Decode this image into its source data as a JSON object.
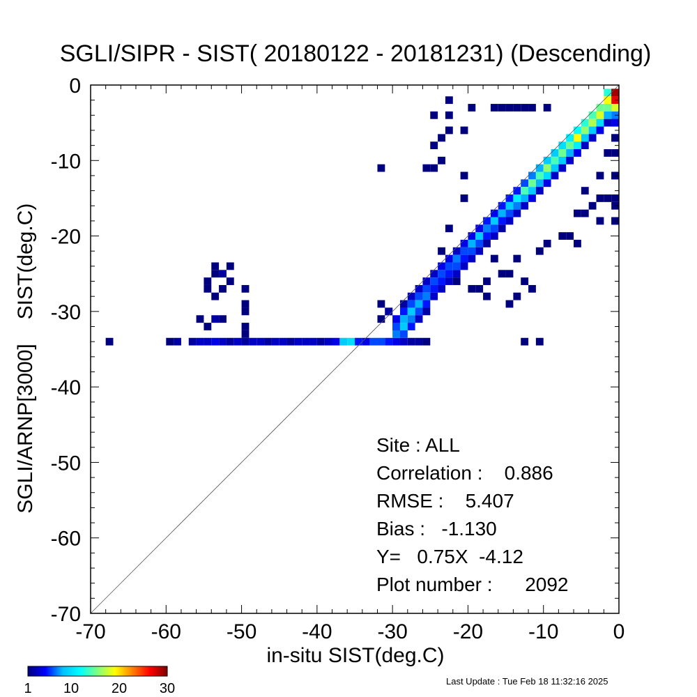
{
  "chart_data": {
    "type": "heatmap",
    "title": "SGLI/SIPR - SIST( 20180122 - 20181231) (Descending)",
    "xlabel": "in-situ SIST(deg.C)",
    "ylabel_lines": [
      "SGLI/ARNP[3000]",
      "SIST(deg.C)"
    ],
    "xlim": [
      -70,
      0
    ],
    "ylim": [
      -70,
      0
    ],
    "x_ticks": [
      "-70",
      "-60",
      "-50",
      "-40",
      "-30",
      "-20",
      "-10",
      "0"
    ],
    "y_ticks": [
      "-70",
      "-60",
      "-50",
      "-40",
      "-30",
      "-20",
      "-10",
      "0"
    ],
    "one_to_one_line": true,
    "bin_width": 1,
    "cells": [
      [
        -68,
        -34,
        1
      ],
      [
        -60,
        -34,
        1
      ],
      [
        -59,
        -34,
        2
      ],
      [
        -57,
        -34,
        2
      ],
      [
        -56,
        -34,
        3
      ],
      [
        -55,
        -34,
        3
      ],
      [
        -54,
        -34,
        4
      ],
      [
        -53,
        -34,
        3
      ],
      [
        -52,
        -34,
        2
      ],
      [
        -51,
        -34,
        3
      ],
      [
        -50,
        -34,
        2
      ],
      [
        -49,
        -34,
        3
      ],
      [
        -48,
        -34,
        3
      ],
      [
        -47,
        -34,
        2
      ],
      [
        -46,
        -34,
        3
      ],
      [
        -45,
        -34,
        3
      ],
      [
        -44,
        -34,
        2
      ],
      [
        -43,
        -34,
        3
      ],
      [
        -42,
        -34,
        3
      ],
      [
        -41,
        -34,
        3
      ],
      [
        -40,
        -34,
        2
      ],
      [
        -39,
        -34,
        3
      ],
      [
        -38,
        -34,
        4
      ],
      [
        -37,
        -34,
        9
      ],
      [
        -36,
        -34,
        10
      ],
      [
        -35,
        -34,
        5
      ],
      [
        -34,
        -34,
        4
      ],
      [
        -33,
        -34,
        6
      ],
      [
        -32,
        -34,
        6
      ],
      [
        -31,
        -34,
        5
      ],
      [
        -30,
        -34,
        4
      ],
      [
        -29,
        -34,
        3
      ],
      [
        -28,
        -34,
        2
      ],
      [
        -27,
        -34,
        2
      ],
      [
        -26,
        -34,
        1
      ],
      [
        -54,
        -24,
        1
      ],
      [
        -52,
        -24,
        1
      ],
      [
        -54,
        -25,
        1
      ],
      [
        -53,
        -25,
        2
      ],
      [
        -55,
        -26,
        1
      ],
      [
        -52,
        -26,
        1
      ],
      [
        -55,
        -27,
        1
      ],
      [
        -53,
        -27,
        1
      ],
      [
        -50,
        -27,
        1
      ],
      [
        -54,
        -28,
        1
      ],
      [
        -50,
        -29,
        1
      ],
      [
        -50,
        -30,
        1
      ],
      [
        -56,
        -31,
        1
      ],
      [
        -54,
        -31,
        2
      ],
      [
        -53,
        -31,
        1
      ],
      [
        -55,
        -32,
        1
      ],
      [
        -50,
        -32,
        1
      ],
      [
        -50,
        -33,
        1
      ],
      [
        -32,
        -11,
        1
      ],
      [
        -32,
        -29,
        1
      ],
      [
        -32,
        -31,
        1
      ],
      [
        -31,
        -30,
        1
      ],
      [
        -30,
        -32,
        1
      ],
      [
        -31,
        -30,
        2
      ],
      [
        -30,
        -31,
        4
      ],
      [
        -30,
        -32,
        6
      ],
      [
        -30,
        -33,
        7
      ],
      [
        -29,
        -29,
        2
      ],
      [
        -29,
        -30,
        5
      ],
      [
        -29,
        -31,
        8
      ],
      [
        -29,
        -32,
        9
      ],
      [
        -29,
        -33,
        6
      ],
      [
        -28,
        -28,
        3
      ],
      [
        -28,
        -29,
        6
      ],
      [
        -28,
        -30,
        9
      ],
      [
        -28,
        -31,
        7
      ],
      [
        -28,
        -32,
        5
      ],
      [
        -27,
        -27,
        3
      ],
      [
        -27,
        -28,
        6
      ],
      [
        -27,
        -29,
        8
      ],
      [
        -27,
        -30,
        6
      ],
      [
        -27,
        -31,
        3
      ],
      [
        -26,
        -26,
        3
      ],
      [
        -26,
        -27,
        6
      ],
      [
        -26,
        -28,
        7
      ],
      [
        -26,
        -29,
        5
      ],
      [
        -26,
        -30,
        2
      ],
      [
        -25,
        -25,
        3
      ],
      [
        -25,
        -26,
        6
      ],
      [
        -25,
        -27,
        5
      ],
      [
        -25,
        -28,
        3
      ],
      [
        -24,
        -24,
        4
      ],
      [
        -24,
        -25,
        6
      ],
      [
        -24,
        -26,
        5
      ],
      [
        -24,
        -27,
        3
      ],
      [
        -23,
        -23,
        4
      ],
      [
        -23,
        -24,
        6
      ],
      [
        -23,
        -25,
        5
      ],
      [
        -23,
        -26,
        3
      ],
      [
        -22,
        -22,
        3
      ],
      [
        -22,
        -23,
        7
      ],
      [
        -22,
        -24,
        6
      ],
      [
        -22,
        -25,
        3
      ],
      [
        -21,
        -21,
        4
      ],
      [
        -21,
        -22,
        6
      ],
      [
        -21,
        -23,
        5
      ],
      [
        -21,
        -24,
        3
      ],
      [
        -20,
        -20,
        4
      ],
      [
        -20,
        -21,
        8
      ],
      [
        -20,
        -22,
        6
      ],
      [
        -20,
        -23,
        3
      ],
      [
        -19,
        -19,
        4
      ],
      [
        -19,
        -20,
        9
      ],
      [
        -19,
        -21,
        6
      ],
      [
        -19,
        -22,
        3
      ],
      [
        -18,
        -18,
        5
      ],
      [
        -18,
        -19,
        7
      ],
      [
        -18,
        -20,
        5
      ],
      [
        -18,
        -21,
        2
      ],
      [
        -17,
        -17,
        4
      ],
      [
        -17,
        -18,
        9
      ],
      [
        -17,
        -19,
        6
      ],
      [
        -17,
        -20,
        3
      ],
      [
        -16,
        -16,
        5
      ],
      [
        -16,
        -17,
        8
      ],
      [
        -16,
        -18,
        5
      ],
      [
        -16,
        -19,
        2
      ],
      [
        -15,
        -15,
        5
      ],
      [
        -15,
        -16,
        9
      ],
      [
        -15,
        -17,
        6
      ],
      [
        -15,
        -18,
        3
      ],
      [
        -14,
        -14,
        5
      ],
      [
        -14,
        -15,
        11
      ],
      [
        -14,
        -16,
        7
      ],
      [
        -14,
        -17,
        3
      ],
      [
        -13,
        -13,
        6
      ],
      [
        -13,
        -14,
        14
      ],
      [
        -13,
        -15,
        8
      ],
      [
        -13,
        -16,
        3
      ],
      [
        -12,
        -12,
        7
      ],
      [
        -12,
        -13,
        15
      ],
      [
        -12,
        -14,
        9
      ],
      [
        -12,
        -15,
        4
      ],
      [
        -11,
        -11,
        8
      ],
      [
        -11,
        -12,
        14
      ],
      [
        -11,
        -13,
        8
      ],
      [
        -11,
        -14,
        3
      ],
      [
        -10,
        -10,
        9
      ],
      [
        -10,
        -11,
        16
      ],
      [
        -10,
        -12,
        10
      ],
      [
        -10,
        -13,
        4
      ],
      [
        -9,
        -9,
        9
      ],
      [
        -9,
        -10,
        14
      ],
      [
        -9,
        -11,
        9
      ],
      [
        -9,
        -12,
        3
      ],
      [
        -8,
        -8,
        10
      ],
      [
        -8,
        -9,
        15
      ],
      [
        -8,
        -10,
        9
      ],
      [
        -8,
        -11,
        3
      ],
      [
        -7,
        -7,
        11
      ],
      [
        -7,
        -8,
        15
      ],
      [
        -7,
        -9,
        8
      ],
      [
        -7,
        -10,
        3
      ],
      [
        -6,
        -6,
        12
      ],
      [
        -6,
        -7,
        19
      ],
      [
        -6,
        -8,
        11
      ],
      [
        -6,
        -9,
        4
      ],
      [
        -5,
        -5,
        13
      ],
      [
        -5,
        -6,
        16
      ],
      [
        -5,
        -7,
        9
      ],
      [
        -5,
        -8,
        3
      ],
      [
        -4,
        -4,
        14
      ],
      [
        -4,
        -5,
        17
      ],
      [
        -4,
        -6,
        9
      ],
      [
        -4,
        -7,
        3
      ],
      [
        -3,
        -3,
        15
      ],
      [
        -3,
        -4,
        18
      ],
      [
        -3,
        -5,
        10
      ],
      [
        -3,
        -6,
        4
      ],
      [
        -2,
        -1,
        13
      ],
      [
        -2,
        -2,
        19
      ],
      [
        -2,
        -3,
        15
      ],
      [
        -2,
        -4,
        8
      ],
      [
        -2,
        -5,
        3
      ],
      [
        -1,
        -1,
        25
      ],
      [
        -1,
        -2,
        22
      ],
      [
        -1,
        -3,
        14
      ],
      [
        -1,
        -4,
        7
      ],
      [
        -1,
        -5,
        3
      ],
      [
        0,
        -1,
        29
      ],
      [
        0,
        -2,
        27
      ],
      [
        0,
        -3,
        18
      ],
      [
        0,
        -5,
        4
      ],
      [
        -23,
        -2,
        1
      ],
      [
        -23,
        -4,
        1
      ],
      [
        -20,
        -3,
        1
      ],
      [
        -17,
        -3,
        1
      ],
      [
        -16,
        -3,
        1
      ],
      [
        -15,
        -3,
        1
      ],
      [
        -14,
        -3,
        1
      ],
      [
        -13,
        -3,
        1
      ],
      [
        -12,
        -3,
        1
      ],
      [
        -10,
        -3,
        1
      ],
      [
        -25,
        -4,
        1
      ],
      [
        -23,
        -6,
        1
      ],
      [
        -21,
        -6,
        1
      ],
      [
        -24,
        -7,
        1
      ],
      [
        -25,
        -8,
        1
      ],
      [
        -24,
        -10,
        1
      ],
      [
        -25,
        -11,
        1
      ],
      [
        -26,
        -11,
        1
      ],
      [
        -21,
        -12,
        1
      ],
      [
        -21,
        -15,
        1
      ],
      [
        -23,
        -19,
        1
      ],
      [
        -24,
        -22,
        1
      ],
      [
        -22,
        -26,
        1
      ],
      [
        -20,
        -27,
        1
      ],
      [
        -19,
        -27,
        1
      ],
      [
        -18,
        -26,
        1
      ],
      [
        -18,
        -28,
        1
      ],
      [
        -17,
        -23,
        1
      ],
      [
        -16,
        -25,
        1
      ],
      [
        -15,
        -25,
        1
      ],
      [
        -14,
        -23,
        1
      ],
      [
        -13,
        -26,
        1
      ],
      [
        -12,
        -27,
        1
      ],
      [
        -11,
        -22,
        1
      ],
      [
        -10,
        -21,
        1
      ],
      [
        -8,
        -20,
        1
      ],
      [
        -7,
        -20,
        1
      ],
      [
        -6,
        -17,
        1
      ],
      [
        -5,
        -17,
        1
      ],
      [
        -4,
        -16,
        1
      ],
      [
        -3,
        -15,
        1
      ],
      [
        -2,
        -15,
        1
      ],
      [
        -1,
        -16,
        1
      ],
      [
        0,
        -15,
        1
      ],
      [
        0,
        -18,
        1
      ],
      [
        -1,
        -18,
        1
      ],
      [
        -3,
        -18,
        1
      ],
      [
        -6,
        -21,
        1
      ],
      [
        -14,
        -28,
        1
      ],
      [
        -15,
        -29,
        1
      ],
      [
        -13,
        -34,
        1
      ],
      [
        -11,
        -34,
        1
      ],
      [
        -5,
        -14,
        1
      ],
      [
        -3,
        -12,
        1
      ],
      [
        -1,
        -12,
        1
      ],
      [
        0,
        -12,
        1
      ],
      [
        0,
        -9,
        1
      ],
      [
        -2,
        -9,
        1
      ],
      [
        -1,
        -7,
        1
      ],
      [
        0,
        -7,
        1
      ]
    ],
    "colorbar": {
      "min": 1,
      "max": 30,
      "tick_labels": [
        "1",
        "10",
        "20",
        "30"
      ],
      "colormap": "jet",
      "colors": [
        "#00007f",
        "#0000ff",
        "#00bfff",
        "#00ffff",
        "#80ff80",
        "#ffff00",
        "#ff8000",
        "#ff0000",
        "#7f0000"
      ]
    },
    "line_color": "#000000"
  },
  "stats": {
    "site": "Site : ALL",
    "correlation": "Correlation :    0.886",
    "rmse": "RMSE :    5.407",
    "bias": "Bias :   -1.130",
    "regression": "Y=   0.75X  -4.12",
    "plot_number": "Plot number :      2092"
  },
  "footer": {
    "last_update": "Last Update : Tue Feb 18 11:32:16 2025"
  }
}
